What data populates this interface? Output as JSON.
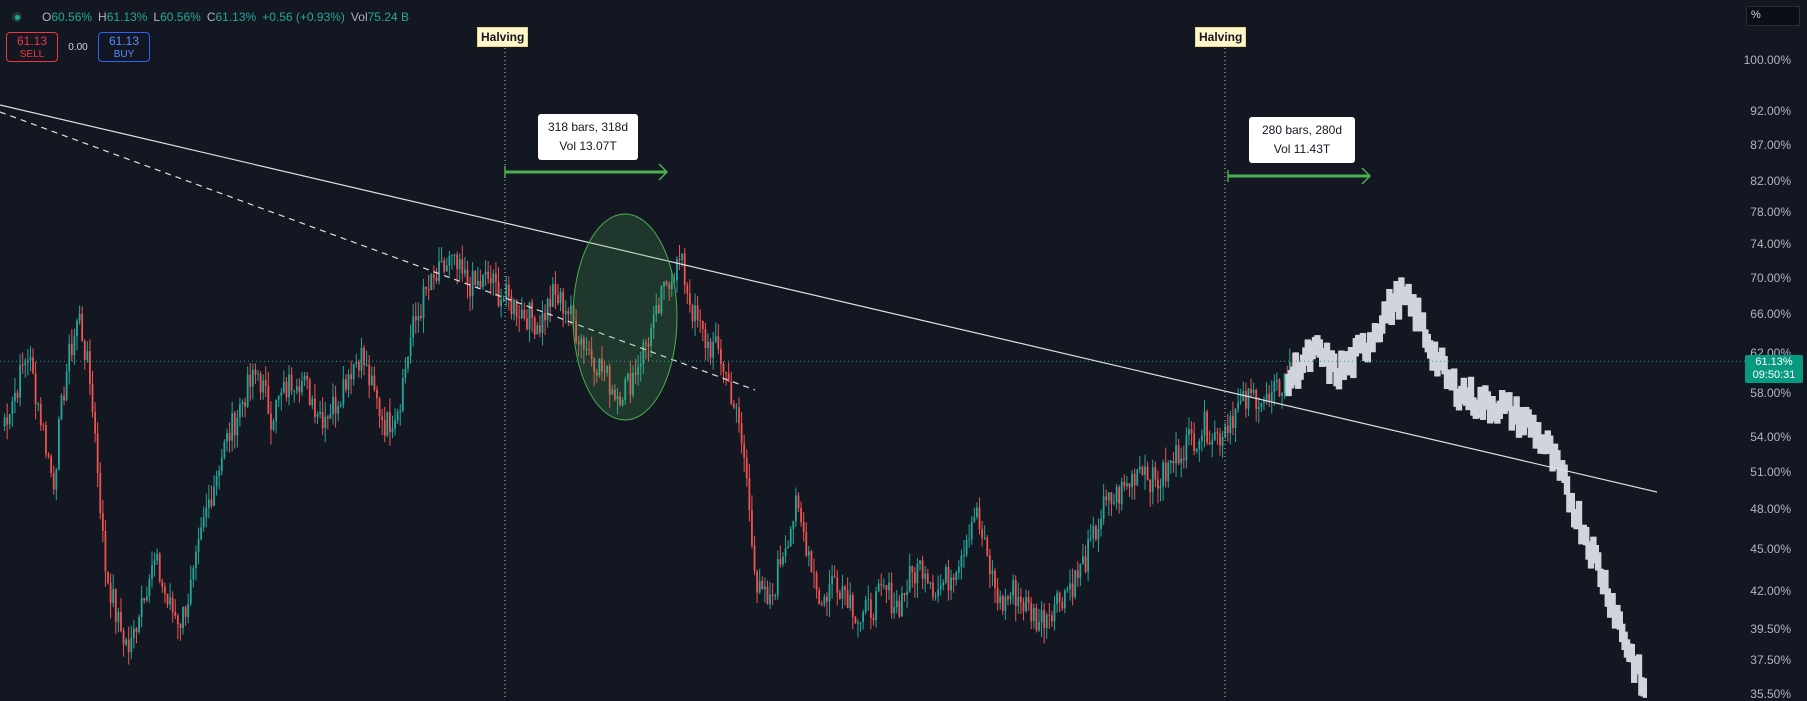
{
  "ohlc": {
    "open_label": "O",
    "open": "60.56%",
    "high_label": "H",
    "high": "61.13%",
    "low_label": "L",
    "low": "60.56%",
    "close_label": "C",
    "close": "61.13%",
    "change": "+0.56 (+0.93%)",
    "vol_label": "Vol",
    "vol": "75.24 B"
  },
  "trade": {
    "sell_price": "61.13",
    "sell_label": "SELL",
    "spread": "0.00",
    "buy_price": "61.13",
    "buy_label": "BUY"
  },
  "scale_mode": "%",
  "price_axis": [
    "100.00%",
    "92.00%",
    "87.00%",
    "82.00%",
    "78.00%",
    "74.00%",
    "70.00%",
    "66.00%",
    "62.00%",
    "58.00%",
    "54.00%",
    "51.00%",
    "48.00%",
    "45.00%",
    "42.00%",
    "39.50%",
    "37.50%",
    "35.50%"
  ],
  "current_price": {
    "value": "61.13%",
    "countdown": "09:50:31"
  },
  "events": [
    {
      "label": "Halving"
    },
    {
      "label": "Halving"
    }
  ],
  "measurements": [
    {
      "line1": "318 bars, 318d",
      "line2": "Vol 13.07T"
    },
    {
      "line1": "280 bars, 280d",
      "line2": "Vol 11.43T"
    }
  ],
  "colors": {
    "background": "#131722",
    "up": "#26a69a",
    "down": "#ef5350",
    "projection": "#d1d4dc",
    "measure": "#4caf50",
    "price_tag": "#089981"
  },
  "chart_data": {
    "type": "candlestick",
    "y_scale": "log",
    "ylim": [
      35.5,
      100
    ],
    "series": [
      {
        "name": "historical",
        "values": [
          55,
          58,
          62,
          56,
          50,
          60,
          66,
          58,
          44,
          40,
          38,
          42,
          44,
          41,
          40,
          43,
          48,
          52,
          55,
          58,
          60,
          56,
          58,
          60,
          58,
          56,
          57,
          60,
          62,
          58,
          55,
          57,
          64,
          68,
          70,
          72,
          70,
          69,
          70,
          68,
          67,
          66,
          65,
          68,
          67,
          64,
          62,
          60,
          58,
          59,
          62,
          65,
          70,
          72,
          66,
          63,
          62,
          58,
          52,
          42,
          41,
          45,
          48,
          45,
          41,
          43,
          42,
          40,
          41,
          42,
          41,
          43,
          44,
          42,
          43,
          45,
          48,
          44,
          41,
          42,
          41,
          40,
          41,
          42,
          43,
          45,
          48,
          49,
          50,
          52,
          50,
          51,
          53,
          54,
          55,
          54,
          56,
          57,
          58,
          57,
          59,
          61
        ]
      },
      {
        "name": "projection",
        "values": [
          59,
          61,
          62,
          60,
          61,
          63,
          66,
          68,
          66,
          62,
          59,
          58,
          57,
          57,
          56,
          55,
          53,
          50,
          47,
          44,
          41,
          38,
          35.5
        ]
      }
    ]
  }
}
